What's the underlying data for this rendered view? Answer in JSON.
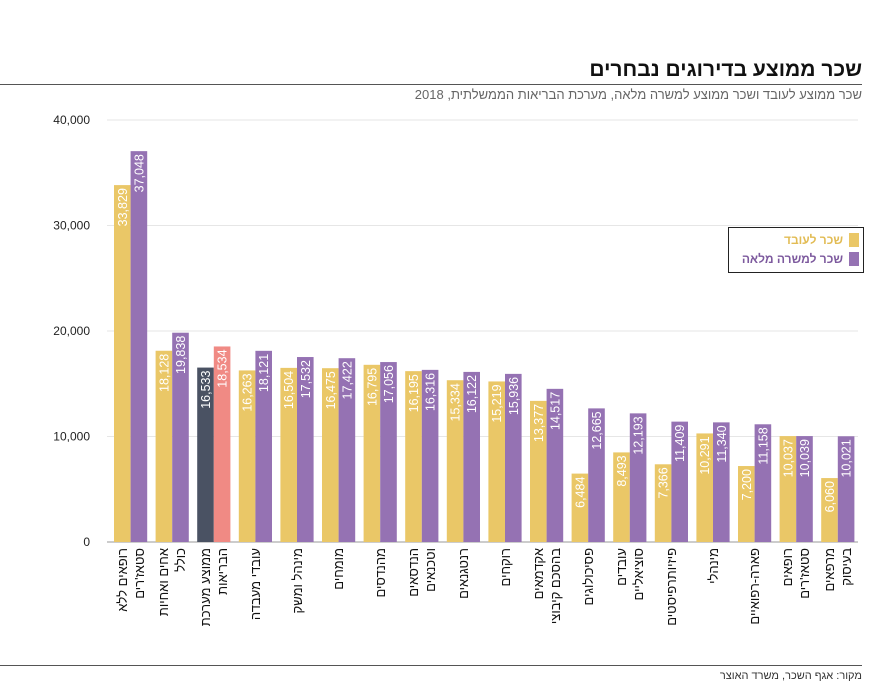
{
  "title": "שכר ממוצע בדירוגים נבחרים",
  "subtitle": "שכר ממוצע לעובד ושכר ממוצע למשרה מלאה, מערכת הבריאות הממשלתית, 2018",
  "source": "מקור: אגף השכר, משרד האוצר",
  "chart_data": {
    "type": "bar",
    "title": "שכר ממוצע בדירוגים נבחרים",
    "ylim": [
      0,
      40000
    ],
    "yticks": [
      "0",
      "10,000",
      "20,000",
      "30,000",
      "40,000"
    ],
    "grid": true,
    "legend_position": "right",
    "categories": [
      [
        "רופאים ללא",
        "סטאז'רים"
      ],
      [
        "אחים ואחיות",
        "כולל"
      ],
      [
        "ממוצע מערכת",
        "הבריאות"
      ],
      [
        "עובדי מעבדה"
      ],
      [
        "מינהל ומשק"
      ],
      [
        "מומחים"
      ],
      [
        "מהנדסים"
      ],
      [
        "הנדסאים",
        "וטכנאים"
      ],
      [
        "רנטגנאים"
      ],
      [
        "רוקחים"
      ],
      [
        "אקדמאים",
        "בהסכם קיבוצי"
      ],
      [
        "פסיכולוגים"
      ],
      [
        "עובדים",
        "סוציאליים"
      ],
      [
        "פיזיותרפיסטים"
      ],
      [
        "מינהלי"
      ],
      [
        "פארה-רפואיים"
      ],
      [
        "רופאים",
        "סטאז'רים"
      ],
      [
        "מרפאים",
        "בעיסוק"
      ]
    ],
    "series": [
      {
        "name": "שכר לעובד",
        "color": "#EAC767",
        "values": [
          33829,
          18128,
          16533,
          16263,
          16504,
          16475,
          16795,
          16195,
          15334,
          15219,
          13377,
          6484,
          8493,
          7366,
          10291,
          7200,
          10037,
          6060
        ],
        "labels": [
          "33,829",
          "18,128",
          "16,533",
          "16,263",
          "16,504",
          "16,475",
          "16,795",
          "16,195",
          "15,334",
          "15,219",
          "13,377",
          "6,484",
          "8,493",
          "7,366",
          "10,291",
          "7,200",
          "10,037",
          "6,060"
        ]
      },
      {
        "name": "שכר למשרה מלאה",
        "color": "#9572B3",
        "values": [
          37048,
          19838,
          18534,
          18121,
          17532,
          17422,
          17056,
          16316,
          16122,
          15936,
          14517,
          12665,
          12193,
          11409,
          11340,
          11158,
          10039,
          10021
        ],
        "labels": [
          "37,048",
          "19,838",
          "18,534",
          "18,121",
          "17,532",
          "17,422",
          "17,056",
          "16,316",
          "16,122",
          "15,936",
          "14,517",
          "12,665",
          "12,193",
          "11,409",
          "11,340",
          "11,158",
          "10,039",
          "10,021"
        ]
      }
    ],
    "highlight": {
      "category_index": 2,
      "colors": [
        "#4A5263",
        "#F08A84"
      ]
    }
  }
}
